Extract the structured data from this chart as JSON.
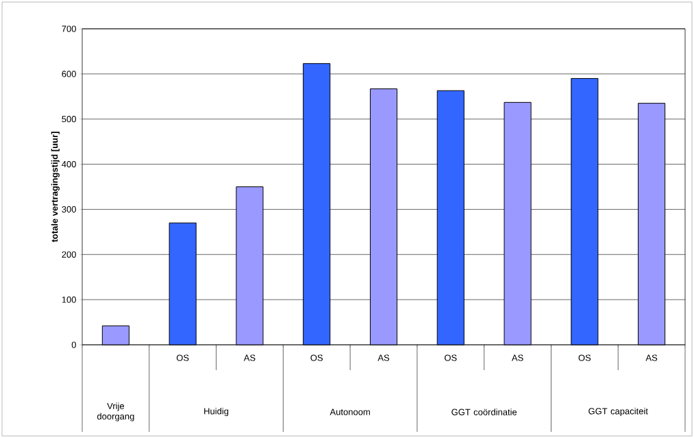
{
  "chart_data": {
    "type": "bar",
    "ylabel": "totale vertragingstijd [uur]",
    "categories": [
      null,
      "OS",
      "AS",
      "OS",
      "AS",
      "OS",
      "AS",
      "OS",
      "AS"
    ],
    "values": [
      42,
      270,
      350,
      623,
      567,
      563,
      537,
      590,
      535
    ],
    "colors": [
      "#9999ff",
      "#3366ff",
      "#9999ff",
      "#3366ff",
      "#9999ff",
      "#3366ff",
      "#9999ff",
      "#3366ff",
      "#9999ff"
    ],
    "ylim": [
      0,
      700
    ],
    "yticks": [
      0,
      100,
      200,
      300,
      400,
      500,
      600,
      700
    ],
    "grid": "y",
    "annotations": [
      "Vrije doorgang",
      "Huidig",
      "Autonoom",
      "GGT coördinatie",
      "GGT capaciteit"
    ]
  }
}
